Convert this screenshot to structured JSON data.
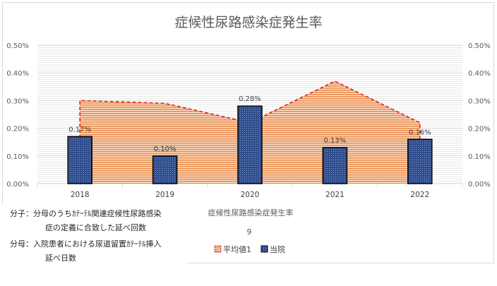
{
  "chart_data": {
    "type": "bar",
    "title": "症候性尿路感染症発生率",
    "categories": [
      "2018",
      "2019",
      "2020",
      "2021",
      "2022"
    ],
    "series": [
      {
        "name": "平均値1",
        "kind": "area",
        "values": [
          0.3,
          0.29,
          0.22,
          0.37,
          0.22
        ],
        "color": "#e46c0a",
        "line_style": "dashed-red"
      },
      {
        "name": "当院",
        "kind": "bar",
        "values": [
          0.17,
          0.1,
          0.28,
          0.13,
          0.16
        ],
        "data_labels": [
          "0.17%",
          "0.10%",
          "0.28%",
          "0.13%",
          "0.16%"
        ],
        "color": "#2f4f8f"
      }
    ],
    "ylim": [
      0,
      0.5
    ],
    "y_ticks": [
      "0.00%",
      "0.10%",
      "0.20%",
      "0.30%",
      "0.40%",
      "0.50%"
    ],
    "y_tick_values": [
      0,
      0.1,
      0.2,
      0.3,
      0.4,
      0.5
    ],
    "secondary_y_ticks": [
      "0.00%",
      "0.10%",
      "0.20%",
      "0.30%",
      "0.40%",
      "0.50%"
    ],
    "grid": true,
    "legend_placement": "bottom-center",
    "xlabel": "症候性尿路感染症発生率",
    "x_subtitle": "9"
  },
  "notes": {
    "numerator_label": "分子：",
    "numerator_line1": "分母のうちｶﾃｰﾃﾙ関連症候性尿路感染",
    "numerator_line2": "症の定義に合致した延べ回数",
    "denominator_label": "分母：",
    "denominator_line1": "入院患者における尿道留置ｶﾃｰﾃﾙ挿入",
    "denominator_line2": "延べ日数"
  }
}
